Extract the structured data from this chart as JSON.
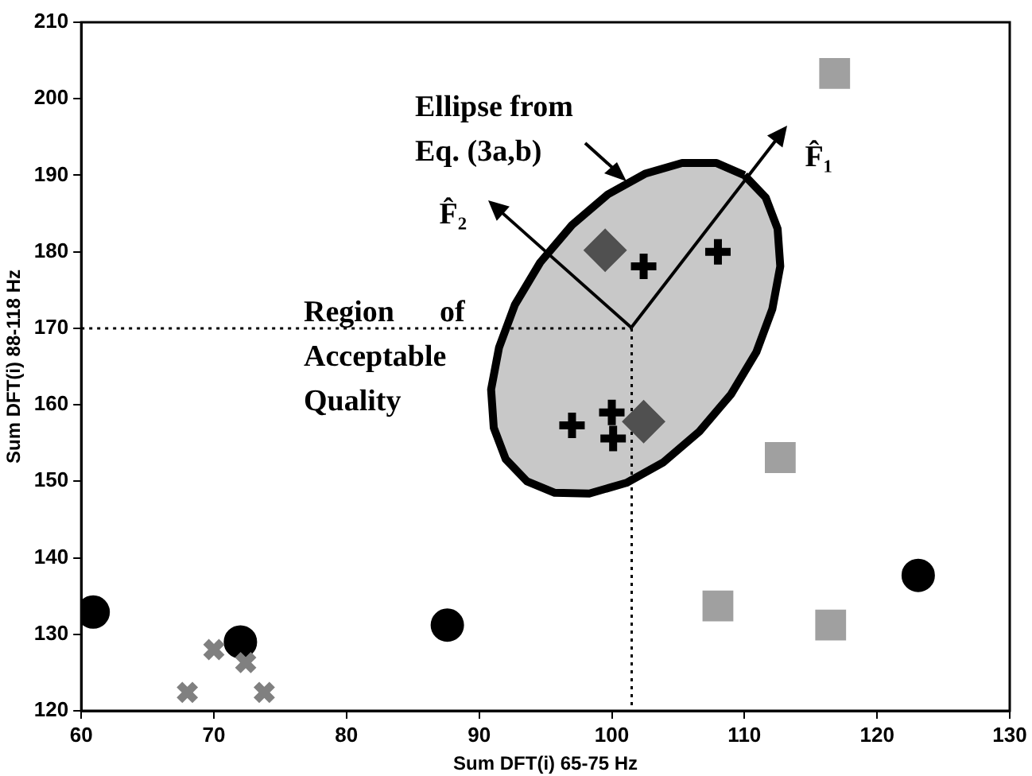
{
  "chart_data": {
    "type": "scatter",
    "xlabel": "Sum DFT(i) 65-75 Hz",
    "ylabel": "Sum DFT(i) 88-118 Hz",
    "xlim": [
      60,
      130
    ],
    "xticks": [
      60,
      70,
      80,
      90,
      100,
      110,
      120,
      130
    ],
    "ylim": [
      120,
      210
    ],
    "yticks": [
      120,
      130,
      140,
      150,
      160,
      170,
      180,
      190,
      200,
      210
    ],
    "grid": false,
    "legend": false,
    "series": [
      {
        "type": "area",
        "color": "#c8c8c8",
        "x": [
          110.0,
          107.9,
          105.3,
          102.5,
          99.7,
          97.0,
          94.6,
          92.7,
          91.5,
          90.9,
          91.1,
          92.0,
          93.6,
          95.7,
          98.3,
          101.1,
          103.9,
          106.6,
          109.0,
          110.9,
          112.1,
          112.7,
          112.5,
          111.6,
          110.0
        ],
        "values": [
          190.0,
          191.6,
          191.6,
          190.2,
          187.5,
          183.5,
          178.6,
          173.1,
          167.5,
          162.0,
          157.0,
          152.9,
          150.0,
          148.5,
          148.4,
          149.8,
          152.5,
          156.5,
          161.4,
          166.9,
          172.5,
          178.1,
          183.0,
          187.1,
          190.0
        ]
      },
      {
        "type": "line",
        "line_style": "dotted",
        "color": "#000000",
        "x": [
          60,
          101.5
        ],
        "values": [
          170,
          170
        ]
      },
      {
        "type": "line",
        "line_style": "dotted",
        "color": "#000000",
        "x": [
          101.5,
          101.5
        ],
        "values": [
          170,
          120
        ]
      },
      {
        "marker": "circle",
        "color": "#000000",
        "x": [
          60.9,
          72.0,
          87.6,
          123.1
        ],
        "values": [
          132.9,
          129.0,
          131.2,
          137.7
        ]
      },
      {
        "marker": "cross",
        "color": "#808080",
        "x": [
          68.0,
          70.0,
          72.4,
          73.8
        ],
        "values": [
          122.4,
          128.0,
          126.3,
          122.4
        ]
      },
      {
        "marker": "square",
        "color": "#a0a0a0",
        "x": [
          116.8,
          112.7,
          108.0,
          116.5
        ],
        "values": [
          203.3,
          153.1,
          133.7,
          131.2
        ]
      },
      {
        "marker": "diamond",
        "color": "#505050",
        "x": [
          99.5,
          102.4
        ],
        "values": [
          180.2,
          157.8
        ]
      },
      {
        "marker": "plus",
        "color": "#000000",
        "x": [
          102.4,
          108.0,
          97.0,
          100.0,
          100.1
        ],
        "values": [
          178.1,
          180.0,
          157.3,
          159.0,
          155.6
        ]
      }
    ],
    "annotations": [
      "Ellipse from\nEq. (3a,b)",
      "Region      of\nAcceptable\nQuality",
      {
        "text": "F̂₁",
        "x": 101.5,
        "y": 170
      },
      {
        "text": "F̂₂",
        "x": 101.5,
        "y": 170
      }
    ]
  }
}
